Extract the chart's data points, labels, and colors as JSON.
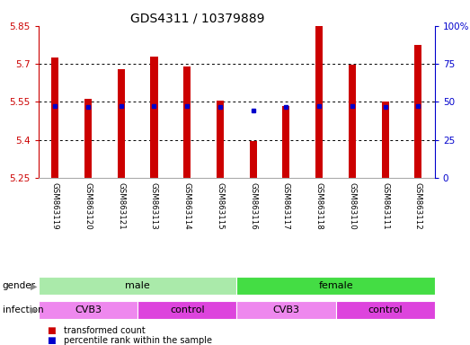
{
  "title": "GDS4311 / 10379889",
  "samples": [
    "GSM863119",
    "GSM863120",
    "GSM863121",
    "GSM863113",
    "GSM863114",
    "GSM863115",
    "GSM863116",
    "GSM863117",
    "GSM863118",
    "GSM863110",
    "GSM863111",
    "GSM863112"
  ],
  "red_bar_tops": [
    5.725,
    5.56,
    5.68,
    5.73,
    5.69,
    5.555,
    5.395,
    5.535,
    5.85,
    5.695,
    5.55,
    5.775
  ],
  "blue_dot_y": [
    5.535,
    5.53,
    5.535,
    5.535,
    5.535,
    5.53,
    5.515,
    5.53,
    5.535,
    5.535,
    5.53,
    5.535
  ],
  "bar_base": 5.25,
  "ylim_left": [
    5.25,
    5.85
  ],
  "ylim_right": [
    0,
    100
  ],
  "yticks_left": [
    5.25,
    5.4,
    5.55,
    5.7,
    5.85
  ],
  "yticks_right": [
    0,
    25,
    50,
    75,
    100
  ],
  "ytick_labels_left": [
    "5.25",
    "5.4",
    "5.55",
    "5.7",
    "5.85"
  ],
  "ytick_labels_right": [
    "0",
    "25",
    "50",
    "75",
    "100%"
  ],
  "red_color": "#cc0000",
  "blue_color": "#0000cc",
  "grid_color": "#000000",
  "gender_groups": [
    {
      "label": "male",
      "span": [
        0,
        6
      ],
      "color": "#aaeaaa"
    },
    {
      "label": "female",
      "span": [
        6,
        12
      ],
      "color": "#44dd44"
    }
  ],
  "infection_groups": [
    {
      "label": "CVB3",
      "span": [
        0,
        3
      ],
      "color": "#ee88ee"
    },
    {
      "label": "control",
      "span": [
        3,
        6
      ],
      "color": "#dd44dd"
    },
    {
      "label": "CVB3",
      "span": [
        6,
        9
      ],
      "color": "#ee88ee"
    },
    {
      "label": "control",
      "span": [
        9,
        12
      ],
      "color": "#dd44dd"
    }
  ],
  "legend_items": [
    {
      "label": "transformed count",
      "color": "#cc0000"
    },
    {
      "label": "percentile rank within the sample",
      "color": "#0000cc"
    }
  ],
  "bg_color": "#ffffff",
  "tick_label_color_left": "#cc0000",
  "tick_label_color_right": "#0000cc"
}
